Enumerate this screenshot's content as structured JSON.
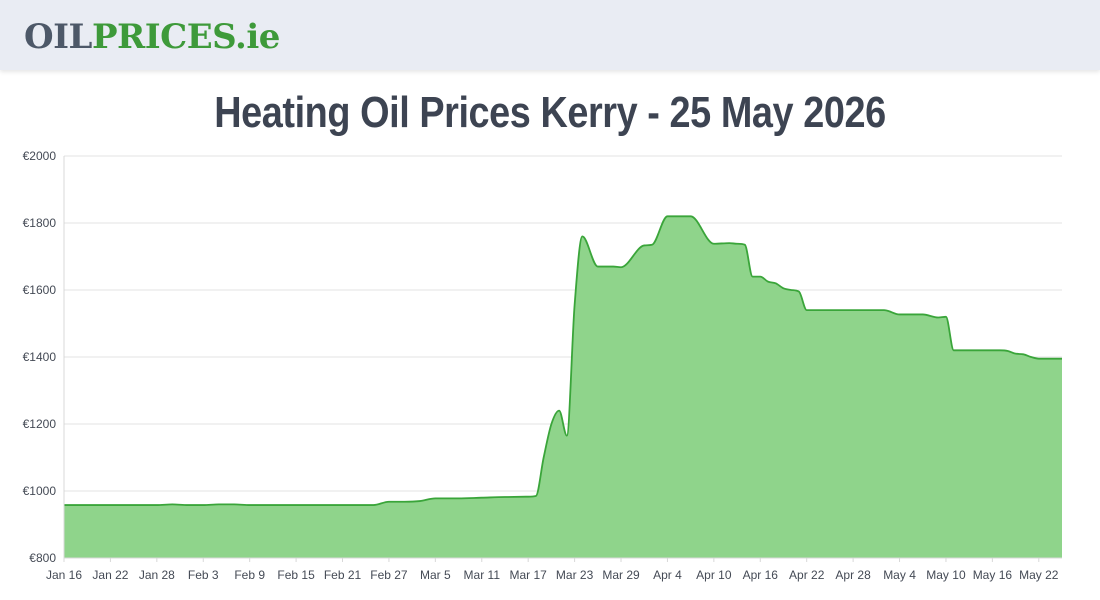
{
  "header": {
    "logo_part1": "OIL",
    "logo_part2": "PRICES",
    "logo_part3": ".ie",
    "brand_color": "#3e9a3a",
    "logo_dark_color": "#4d5868"
  },
  "page": {
    "title": "Heating Oil Prices Kerry - 25 May 2026"
  },
  "chart_data": {
    "type": "area",
    "title": "Heating Oil Prices Kerry - 25 May 2026",
    "xlabel": "",
    "ylabel": "",
    "ylim": [
      800,
      2000
    ],
    "yticks": [
      800,
      1000,
      1200,
      1400,
      1600,
      1800,
      2000
    ],
    "ytick_labels": [
      "€800",
      "€1000",
      "€1200",
      "€1400",
      "€1600",
      "€1800",
      "€2000"
    ],
    "xlim": [
      "2026-01-16",
      "2026-05-25"
    ],
    "xtick_labels": [
      "Jan 16",
      "Jan 22",
      "Jan 28",
      "Feb 3",
      "Feb 9",
      "Feb 15",
      "Feb 21",
      "Feb 27",
      "Mar 5",
      "Mar 11",
      "Mar 17",
      "Mar 23",
      "Mar 29",
      "Apr 4",
      "Apr 10",
      "Apr 16",
      "Apr 22",
      "Apr 28",
      "May 4",
      "May 10",
      "May 16",
      "May 22"
    ],
    "grid": true,
    "line_color": "#3aa53a",
    "fill_color": "#8fd48b",
    "series": [
      {
        "x": [
          "2026-01-16",
          "2026-01-22",
          "2026-01-28",
          "2026-01-30",
          "2026-02-01",
          "2026-02-03",
          "2026-02-05",
          "2026-02-07",
          "2026-02-09",
          "2026-02-15",
          "2026-02-21",
          "2026-02-25",
          "2026-02-27",
          "2026-03-01",
          "2026-03-03",
          "2026-03-05",
          "2026-03-08",
          "2026-03-11",
          "2026-03-14",
          "2026-03-17",
          "2026-03-18",
          "2026-03-19",
          "2026-03-20",
          "2026-03-21",
          "2026-03-22",
          "2026-03-23",
          "2026-03-24",
          "2026-03-26",
          "2026-03-28",
          "2026-03-29",
          "2026-04-01",
          "2026-04-02",
          "2026-04-04",
          "2026-04-06",
          "2026-04-07",
          "2026-04-10",
          "2026-04-12",
          "2026-04-13",
          "2026-04-14",
          "2026-04-15",
          "2026-04-16",
          "2026-04-17",
          "2026-04-18",
          "2026-04-19",
          "2026-04-20",
          "2026-04-21",
          "2026-04-22",
          "2026-04-28",
          "2026-05-01",
          "2026-05-02",
          "2026-05-04",
          "2026-05-06",
          "2026-05-07",
          "2026-05-09",
          "2026-05-10",
          "2026-05-11",
          "2026-05-16",
          "2026-05-17",
          "2026-05-18",
          "2026-05-19",
          "2026-05-20",
          "2026-05-21",
          "2026-05-22",
          "2026-05-25"
        ],
        "values": [
          958,
          958,
          958,
          960,
          958,
          958,
          960,
          960,
          958,
          958,
          958,
          958,
          968,
          968,
          970,
          978,
          978,
          980,
          982,
          983,
          985,
          1100,
          1200,
          1240,
          1165,
          1555,
          1760,
          1670,
          1670,
          1668,
          1733,
          1735,
          1820,
          1820,
          1820,
          1738,
          1740,
          1738,
          1735,
          1640,
          1640,
          1625,
          1620,
          1605,
          1600,
          1595,
          1540,
          1540,
          1540,
          1540,
          1527,
          1527,
          1527,
          1518,
          1520,
          1420,
          1420,
          1420,
          1418,
          1410,
          1408,
          1400,
          1395,
          1395
        ]
      }
    ]
  }
}
